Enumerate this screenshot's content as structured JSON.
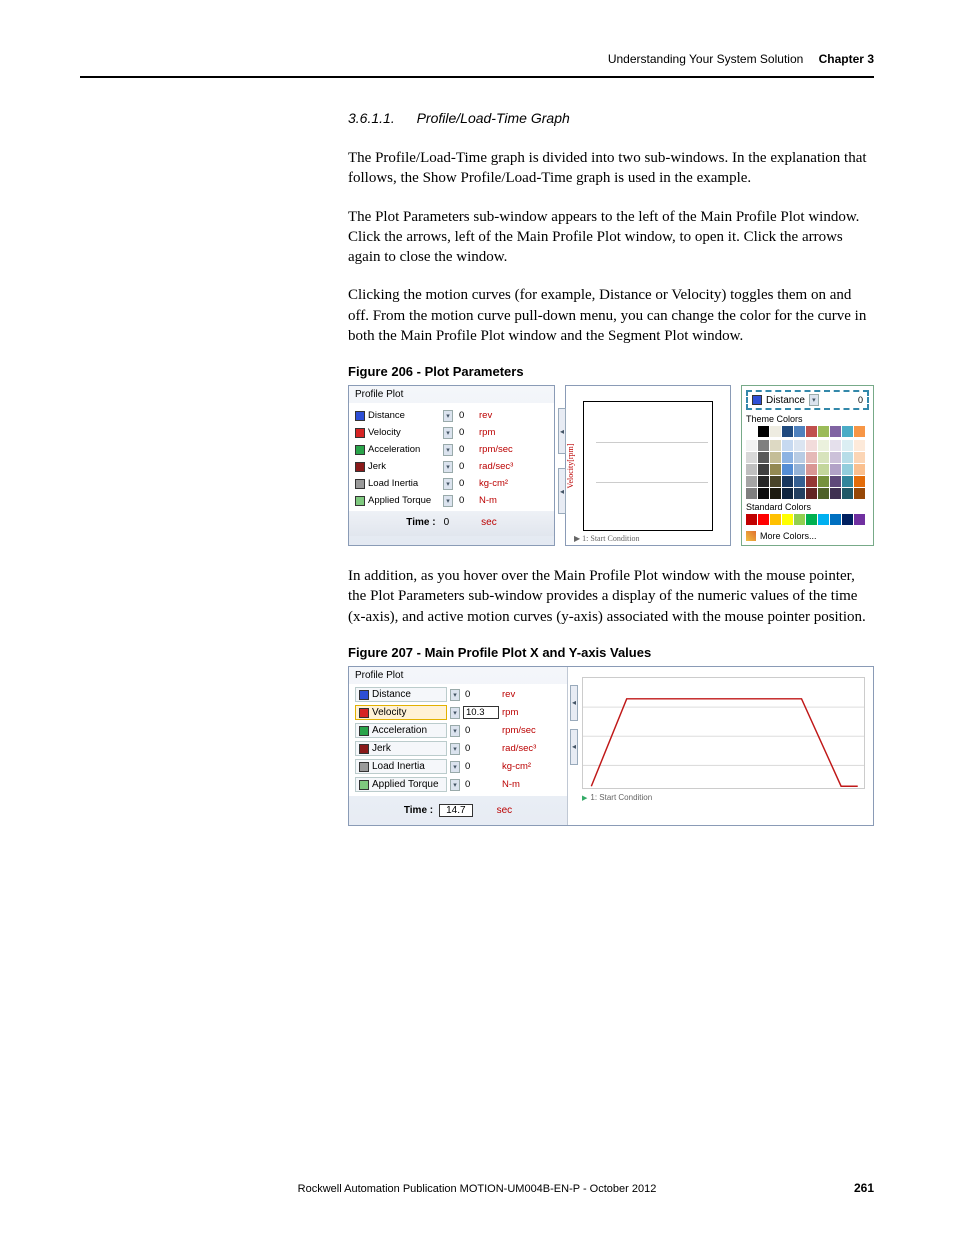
{
  "header": {
    "section_title": "Understanding Your System Solution",
    "chapter": "Chapter 3"
  },
  "section": {
    "number": "3.6.1.1.",
    "title": "Profile/Load-Time Graph"
  },
  "para1": "The Profile/Load-Time graph is divided into two sub-windows. In the explanation that follows, the Show Profile/Load-Time graph is used in the example.",
  "para2": "The Plot Parameters sub-window appears to the left of the Main Profile Plot window. Click the arrows, left of the Main Profile Plot window, to open it. Click the arrows again to close the window.",
  "para3": "Clicking the motion curves (for example, Distance or Velocity) toggles them on and off. From the motion curve pull-down menu, you can change the color for the curve in both the Main Profile Plot window and the Segment Plot window.",
  "fig206": {
    "caption": "Figure 206 - Plot Parameters",
    "panel_title": "Profile Plot",
    "rows": [
      {
        "label": "Distance",
        "color": "#2e4fd6",
        "value": "0",
        "unit": "rev"
      },
      {
        "label": "Velocity",
        "color": "#d62424",
        "value": "0",
        "unit": "rpm"
      },
      {
        "label": "Acceleration",
        "color": "#2aa44a",
        "value": "0",
        "unit": "rpm/sec"
      },
      {
        "label": "Jerk",
        "color": "#8a1a1a",
        "value": "0",
        "unit": "rad/sec³"
      },
      {
        "label": "Load Inertia",
        "color": "#9a9a9a",
        "value": "0",
        "unit": "kg-cm²"
      },
      {
        "label": "Applied Torque",
        "color": "#7fc97f",
        "value": "0",
        "unit": "N-m"
      }
    ],
    "time_label": "Time :",
    "time_value": "0",
    "time_unit": "sec",
    "axis_label": "Velocity[rpm]",
    "legend": "1: Start Condition",
    "color_picker": {
      "selected_label": "Distance",
      "selected_color": "#2e4fd6",
      "selected_value": "0",
      "theme_title": "Theme Colors",
      "theme_row1": [
        "#ffffff",
        "#000000",
        "#eeece1",
        "#1f497d",
        "#4f81bd",
        "#c0504d",
        "#9bbb59",
        "#8064a2",
        "#4bacc6",
        "#f79646"
      ],
      "theme_shades": [
        [
          "#f2f2f2",
          "#7f7f7f",
          "#ddd9c3",
          "#c6d9f0",
          "#dbe5f1",
          "#f2dcdb",
          "#ebf1dd",
          "#e5e0ec",
          "#dbeef3",
          "#fdeada"
        ],
        [
          "#d8d8d8",
          "#595959",
          "#c4bd97",
          "#8db3e2",
          "#b8cce4",
          "#e5b9b7",
          "#d7e3bc",
          "#ccc1d9",
          "#b7dde8",
          "#fbd5b5"
        ],
        [
          "#bfbfbf",
          "#3f3f3f",
          "#938953",
          "#548dd4",
          "#95b3d7",
          "#d99694",
          "#c3d69b",
          "#b2a2c7",
          "#92cddc",
          "#fac08f"
        ],
        [
          "#a5a5a5",
          "#262626",
          "#494429",
          "#17365d",
          "#366092",
          "#953734",
          "#76923c",
          "#5f497a",
          "#31859b",
          "#e36c09"
        ],
        [
          "#7f7f7f",
          "#0c0c0c",
          "#1d1b10",
          "#0f243e",
          "#244061",
          "#632423",
          "#4f6128",
          "#3f3151",
          "#205867",
          "#974806"
        ]
      ],
      "standard_title": "Standard Colors",
      "standard": [
        "#c00000",
        "#ff0000",
        "#ffc000",
        "#ffff00",
        "#92d050",
        "#00b050",
        "#00b0f0",
        "#0070c0",
        "#002060",
        "#7030a0"
      ],
      "more_label": "More Colors..."
    }
  },
  "para4": "In addition, as you hover over the Main Profile Plot window with the mouse pointer, the Plot Parameters sub-window provides a display of the numeric values of the time (x-axis), and active motion curves (y-axis) associated with the mouse pointer position.",
  "fig207": {
    "caption": "Figure 207 - Main Profile Plot X and Y-axis Values",
    "panel_title": "Profile Plot",
    "rows": [
      {
        "label": "Distance",
        "color": "#2e4fd6",
        "value": "0",
        "unit": "rev",
        "selected": false
      },
      {
        "label": "Velocity",
        "color": "#d62424",
        "value": "10.3",
        "unit": "rpm",
        "selected": true
      },
      {
        "label": "Acceleration",
        "color": "#2aa44a",
        "value": "0",
        "unit": "rpm/sec",
        "selected": false
      },
      {
        "label": "Jerk",
        "color": "#8a1a1a",
        "value": "0",
        "unit": "rad/sec³",
        "selected": false
      },
      {
        "label": "Load Inertia",
        "color": "#9a9a9a",
        "value": "0",
        "unit": "kg-cm²",
        "selected": false
      },
      {
        "label": "Applied Torque",
        "color": "#7fc97f",
        "value": "0",
        "unit": "N-m",
        "selected": false
      }
    ],
    "time_label": "Time :",
    "time_value": "14.7",
    "time_unit": "sec",
    "legend": "1: Start Condition",
    "velocity_trace": {
      "color": "#c01818",
      "points": [
        [
          8,
          104
        ],
        [
          42,
          20
        ],
        [
          210,
          20
        ],
        [
          248,
          104
        ],
        [
          264,
          104
        ]
      ],
      "stroke_width": 1.4
    }
  },
  "footer": {
    "text": "Rockwell Automation Publication MOTION-UM004B-EN-P - October 2012",
    "page": "261"
  }
}
